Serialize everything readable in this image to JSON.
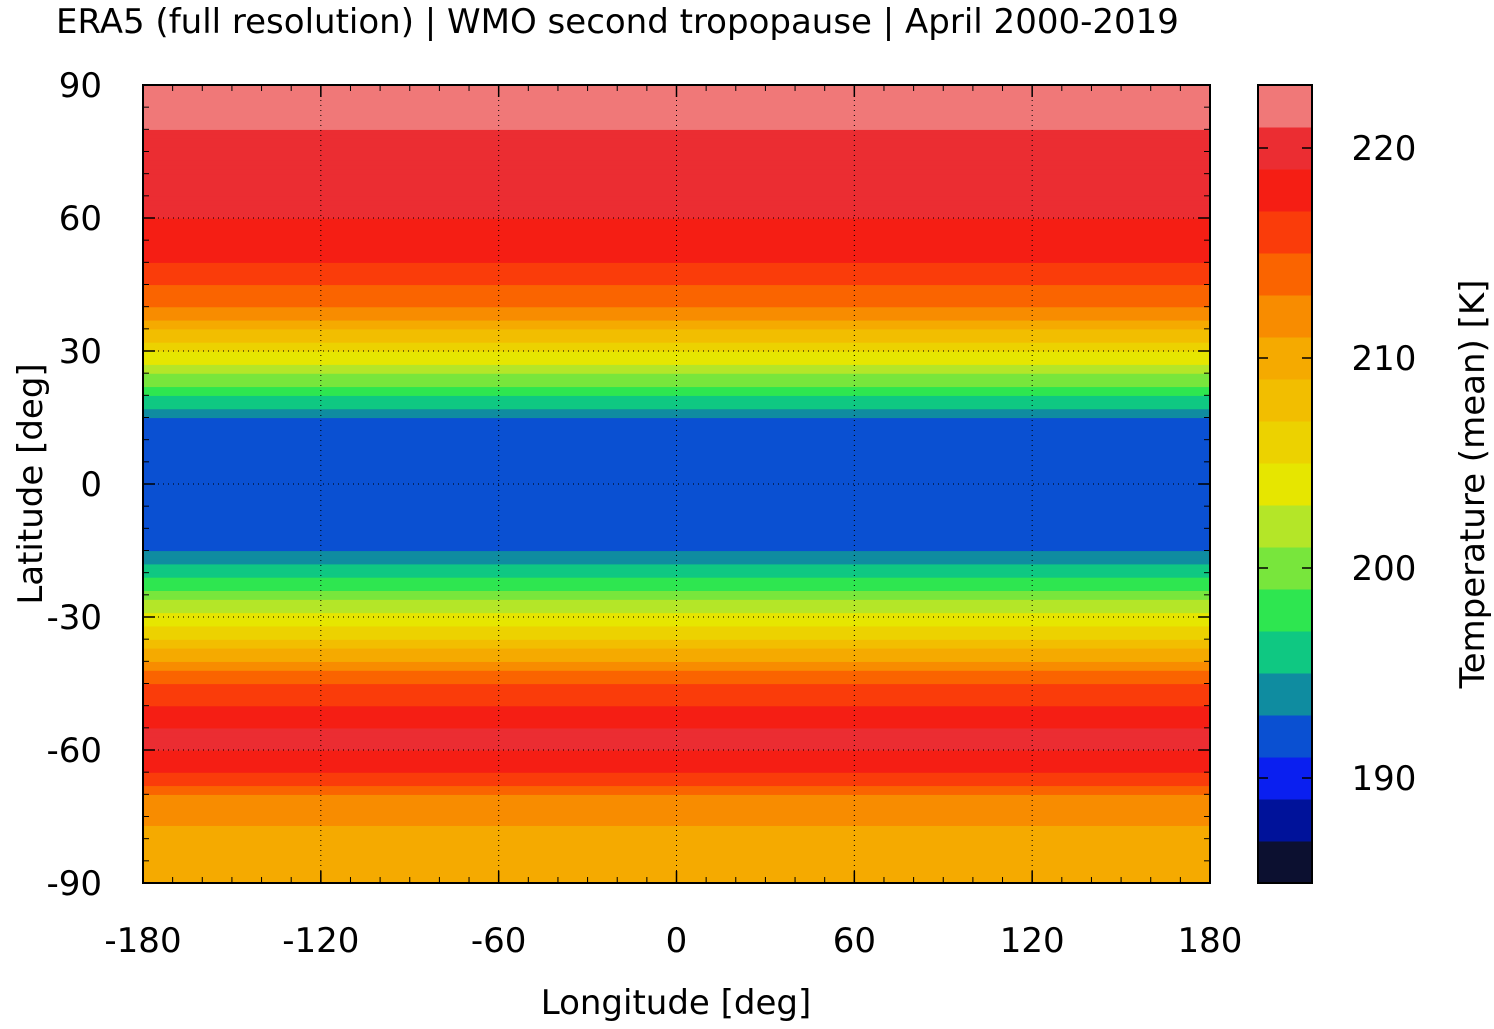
{
  "chart_data": {
    "type": "heatmap",
    "title": "ERA5 (full resolution) | WMO second tropopause | April 2000-2019",
    "xlabel": "Longitude [deg]",
    "ylabel": "Latitude [deg]",
    "colorbar_label": "Temperature (mean) [K]",
    "xlim": [
      -180,
      180
    ],
    "ylim": [
      -90,
      90
    ],
    "x_ticks": [
      -180,
      -120,
      -60,
      0,
      60,
      120,
      180
    ],
    "y_ticks": [
      90,
      60,
      30,
      0,
      -30,
      -60,
      -90
    ],
    "colorbar_ticks": [
      190,
      200,
      210,
      220
    ],
    "colorbar_range": [
      185,
      223
    ],
    "grid": true,
    "overlay": "coastlines",
    "color_levels": [
      {
        "from": 185,
        "to": 187,
        "color": "#0c1030"
      },
      {
        "from": 187,
        "to": 189,
        "color": "#00129a"
      },
      {
        "from": 189,
        "to": 191,
        "color": "#0a1ff0"
      },
      {
        "from": 191,
        "to": 193,
        "color": "#0a50d2"
      },
      {
        "from": 193,
        "to": 195,
        "color": "#0f8ca0"
      },
      {
        "from": 195,
        "to": 197,
        "color": "#0fc882"
      },
      {
        "from": 197,
        "to": 199,
        "color": "#2ee650"
      },
      {
        "from": 199,
        "to": 201,
        "color": "#78e63c"
      },
      {
        "from": 201,
        "to": 203,
        "color": "#b4e628"
      },
      {
        "from": 203,
        "to": 205,
        "color": "#e6e600"
      },
      {
        "from": 205,
        "to": 207,
        "color": "#ecd200"
      },
      {
        "from": 207,
        "to": 209,
        "color": "#f2be00"
      },
      {
        "from": 209,
        "to": 211,
        "color": "#f5aa00"
      },
      {
        "from": 211,
        "to": 213,
        "color": "#f88c00"
      },
      {
        "from": 213,
        "to": 215,
        "color": "#fa6400"
      },
      {
        "from": 215,
        "to": 217,
        "color": "#fa3c0a"
      },
      {
        "from": 217,
        "to": 219,
        "color": "#f51e14"
      },
      {
        "from": 219,
        "to": 221,
        "color": "#eb2d32"
      },
      {
        "from": 221,
        "to": 223,
        "color": "#f07878"
      },
      {
        "from": 223,
        "to": 225,
        "color": "#ffc8c8"
      }
    ],
    "zonal_mean_profile": {
      "lat": [
        -90,
        -80,
        -70,
        -65,
        -60,
        -55,
        -50,
        -45,
        -40,
        -35,
        -30,
        -25,
        -20,
        -15,
        -10,
        -5,
        0,
        5,
        10,
        15,
        20,
        25,
        30,
        35,
        40,
        45,
        50,
        55,
        60,
        65,
        70,
        75,
        80,
        85,
        90
      ],
      "temp": [
        209,
        210,
        213,
        217,
        219,
        219,
        217,
        215,
        211,
        207,
        204,
        200,
        196,
        193,
        191,
        191,
        191,
        191,
        191,
        193,
        197,
        201,
        205,
        209,
        213,
        215,
        217,
        218,
        219,
        219,
        219,
        220,
        221,
        222,
        223
      ]
    }
  }
}
